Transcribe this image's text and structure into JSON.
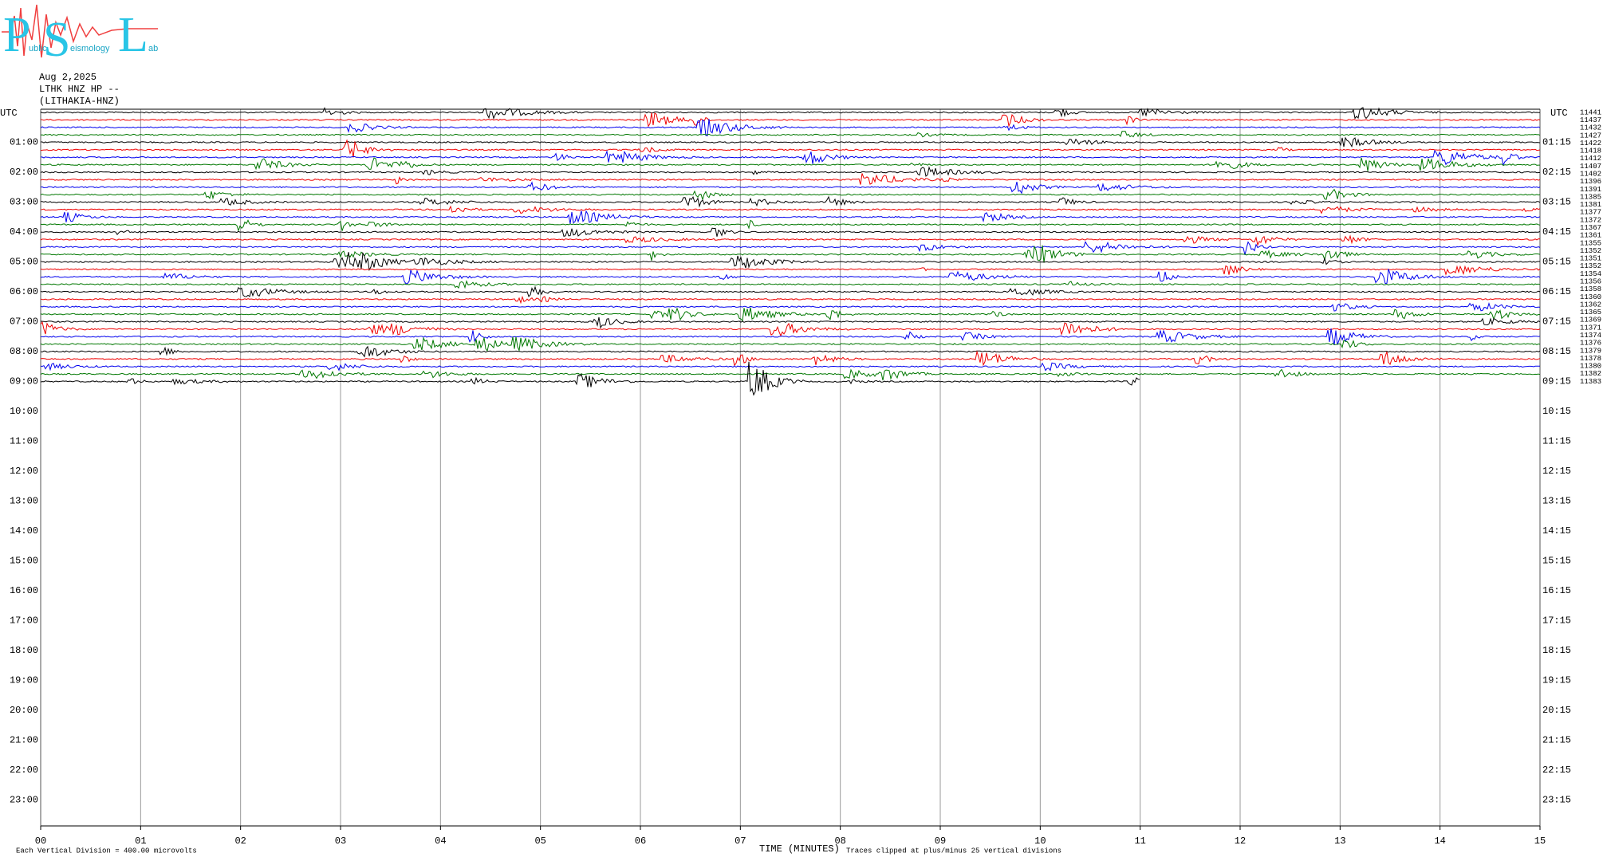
{
  "logo": {
    "letters": [
      "P",
      "S",
      "L"
    ],
    "words": [
      "ublic",
      "eismology",
      "ab"
    ]
  },
  "header": {
    "date": "Aug 2,2025",
    "station": "LTHK HNZ HP --",
    "name": "(LITHAKIA-HNZ)"
  },
  "left_axis": {
    "title": "UTC",
    "labels": [
      "01:00",
      "02:00",
      "03:00",
      "04:00",
      "05:00",
      "06:00",
      "07:00",
      "08:00",
      "09:00",
      "10:00",
      "11:00",
      "12:00",
      "13:00",
      "14:00",
      "15:00",
      "16:00",
      "17:00",
      "18:00",
      "19:00",
      "20:00",
      "21:00",
      "22:00",
      "23:00"
    ]
  },
  "right_axis": {
    "title": "UTC",
    "labels": [
      "01:15",
      "02:15",
      "03:15",
      "04:15",
      "05:15",
      "06:15",
      "07:15",
      "08:15",
      "09:15",
      "10:15",
      "11:15",
      "12:15",
      "13:15",
      "14:15",
      "15:15",
      "16:15",
      "17:15",
      "18:15",
      "19:15",
      "20:15",
      "21:15",
      "22:15",
      "23:15"
    ]
  },
  "trace_offsets": [
    "11441",
    "11437",
    "11432",
    "11427",
    "11422",
    "11418",
    "11412",
    "11407",
    "11402",
    "11396",
    "11391",
    "11385",
    "11381",
    "11377",
    "11372",
    "11367",
    "11361",
    "11355",
    "11352",
    "11351",
    "11352",
    "11354",
    "11356",
    "11358",
    "11360",
    "11362",
    "11365",
    "11369",
    "11371",
    "11374",
    "11376",
    "11379",
    "11378",
    "11380",
    "11382",
    "11383"
  ],
  "x_axis": {
    "ticks": [
      "00",
      "01",
      "02",
      "03",
      "04",
      "05",
      "06",
      "07",
      "08",
      "09",
      "10",
      "11",
      "12",
      "13",
      "14",
      "15"
    ],
    "title": "TIME (MINUTES)"
  },
  "footer": {
    "scale": "Each Vertical Division =  400.00 microvolts",
    "clip": "Traces clipped at plus/minus 25 vertical divisions"
  }
}
